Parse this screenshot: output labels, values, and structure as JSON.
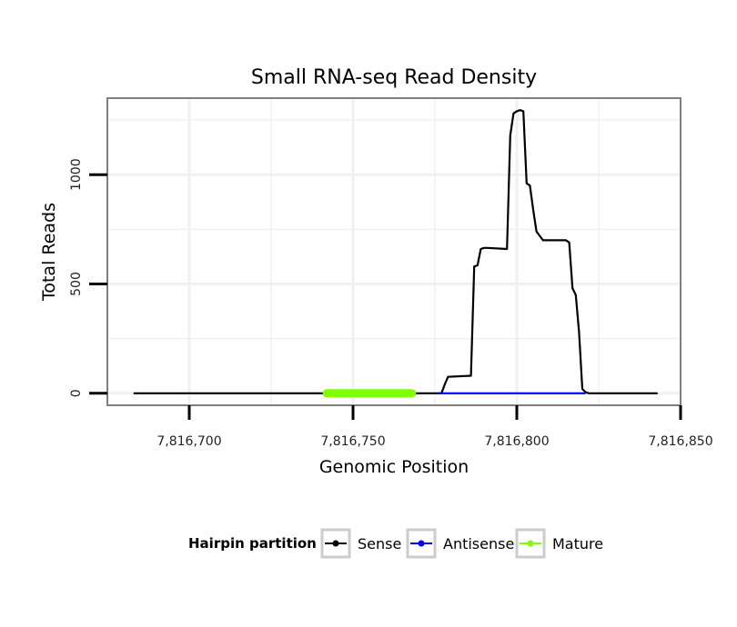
{
  "chart_data": {
    "type": "line",
    "title": "Small RNA-seq Read Density",
    "xlabel": "Genomic Position",
    "ylabel": "Total Reads",
    "xlim": [
      7816675,
      7816850
    ],
    "ylim": [
      -55,
      1350
    ],
    "x_ticks": [
      7816700,
      7816750,
      7816800,
      7816850
    ],
    "x_tick_labels": [
      "7,816,700",
      "7,816,750",
      "7,816,800",
      "7,816,850"
    ],
    "y_ticks": [
      0,
      500,
      1000
    ],
    "y_tick_labels": [
      "0",
      "500",
      "1000"
    ],
    "grid": true,
    "legend": {
      "title": "Hairpin partition",
      "placement": "bottom",
      "entries": [
        "Sense",
        "Antisense",
        "Mature"
      ]
    },
    "colors": {
      "Sense": "#000000",
      "Antisense": "#0000ff",
      "Mature": "#7fff00"
    },
    "series": [
      {
        "name": "Sense",
        "x": [
          7816683,
          7816777,
          7816778,
          7816779,
          7816786,
          7816787,
          7816788,
          7816789,
          7816790,
          7816791,
          7816797,
          7816798,
          7816799,
          7816800,
          7816801,
          7816802,
          7816803,
          7816804,
          7816805,
          7816806,
          7816807,
          7816808,
          7816809,
          7816815,
          7816816,
          7816817,
          7816818,
          7816819,
          7816820,
          7816821,
          7816822,
          7816843
        ],
        "values": [
          0,
          0,
          40,
          75,
          80,
          580,
          585,
          660,
          665,
          665,
          660,
          1180,
          1280,
          1290,
          1295,
          1290,
          960,
          950,
          840,
          740,
          720,
          700,
          700,
          700,
          690,
          480,
          450,
          280,
          20,
          5,
          0,
          0
        ]
      },
      {
        "name": "Antisense",
        "x": [
          7816776,
          7816821
        ],
        "values": [
          0,
          0
        ]
      },
      {
        "name": "Mature",
        "x": [
          7816742,
          7816768
        ],
        "values": [
          0,
          0
        ]
      }
    ]
  }
}
